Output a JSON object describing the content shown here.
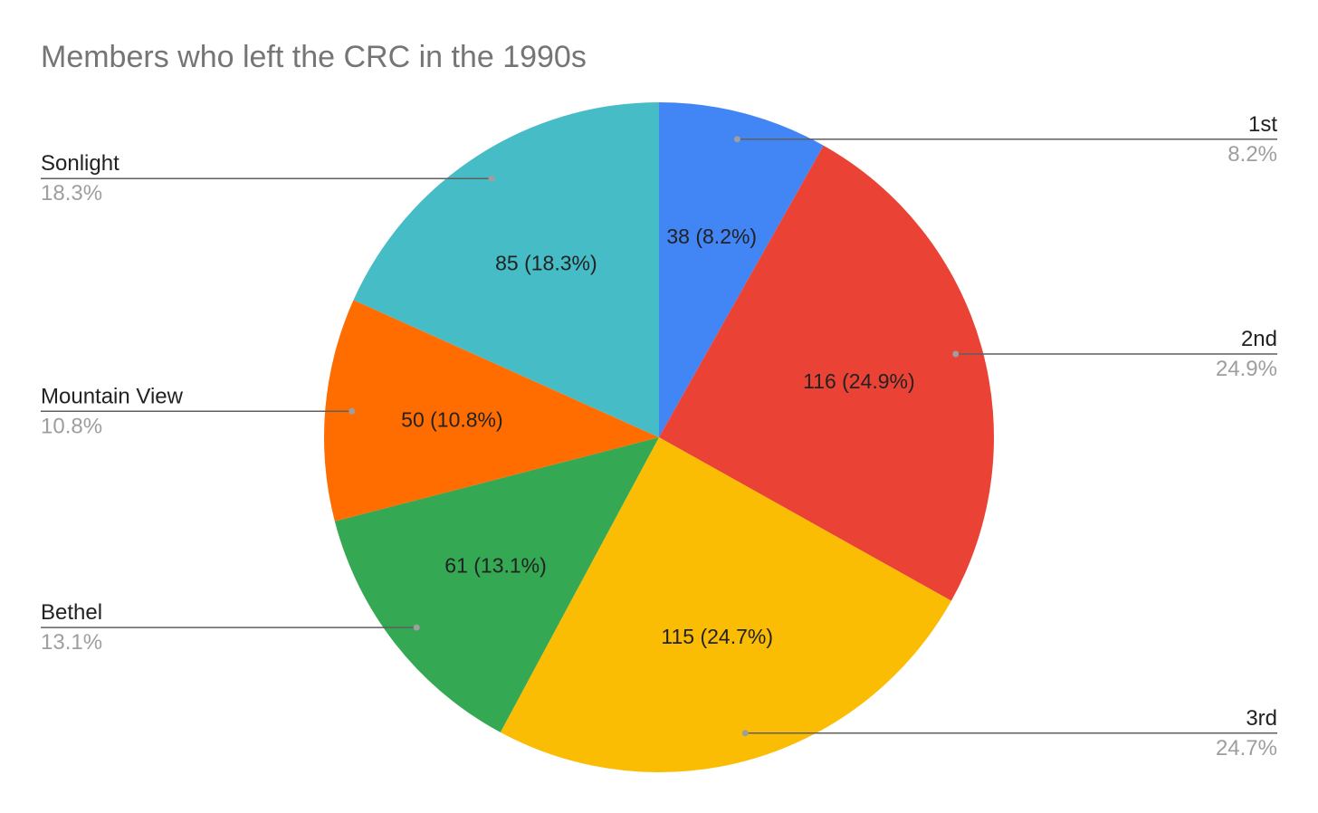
{
  "chart_data": {
    "type": "pie",
    "title": "Members who left the CRC in the 1990s",
    "start_angle_deg": 0,
    "direction": "clockwise",
    "slices": [
      {
        "label": "1st",
        "value": 38,
        "percent_text": "8.2%",
        "slice_text": "38 (8.2%)",
        "color": "#4285f4",
        "callout_side": "right"
      },
      {
        "label": "2nd",
        "value": 116,
        "percent_text": "24.9%",
        "slice_text": "116 (24.9%)",
        "color": "#ea4335",
        "callout_side": "right"
      },
      {
        "label": "3rd",
        "value": 115,
        "percent_text": "24.7%",
        "slice_text": "115 (24.7%)",
        "color": "#fbbc04",
        "callout_side": "right"
      },
      {
        "label": "Bethel",
        "value": 61,
        "percent_text": "13.1%",
        "slice_text": "61 (13.1%)",
        "color": "#34a853",
        "callout_side": "left"
      },
      {
        "label": "Mountain View",
        "value": 50,
        "percent_text": "10.8%",
        "slice_text": "50 (10.8%)",
        "color": "#ff6d01",
        "callout_side": "left"
      },
      {
        "label": "Sonlight",
        "value": 85,
        "percent_text": "18.3%",
        "slice_text": "85 (18.3%)",
        "color": "#46bdc6",
        "callout_side": "left"
      }
    ],
    "legend": "callouts"
  }
}
